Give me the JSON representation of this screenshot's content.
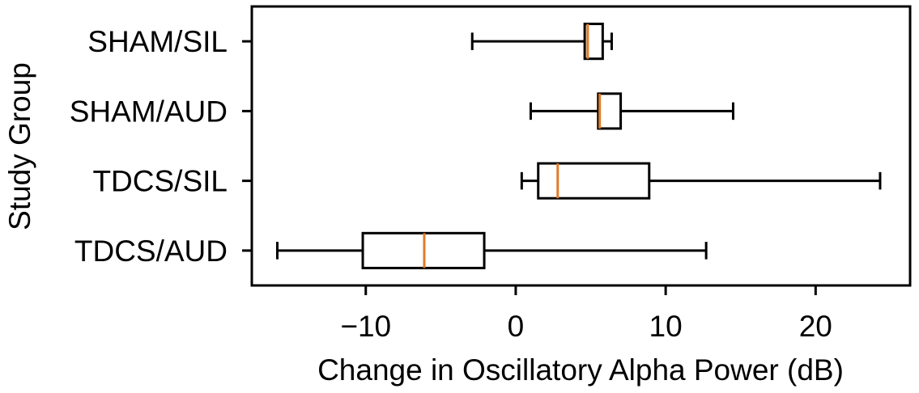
{
  "chart_data": {
    "type": "boxplot",
    "orientation": "horizontal",
    "xlabel": "Change in Oscillatory Alpha Power (dB)",
    "ylabel": "Study Group",
    "xlim": [
      -17.6,
      26.3
    ],
    "xticks": [
      -10,
      0,
      10,
      20
    ],
    "xtick_labels": [
      "−10",
      "0",
      "10",
      "20"
    ],
    "grid": false,
    "colors": {
      "box": "#000000",
      "median": "#e07b28"
    },
    "categories": [
      "SHAM/SIL",
      "SHAM/AUD",
      "TDCS/SIL",
      "TDCS/AUD"
    ],
    "boxes": [
      {
        "group": "SHAM/SIL",
        "whisker_low": -2.9,
        "q1": 4.6,
        "median": 4.8,
        "q3": 5.8,
        "whisker_high": 6.4
      },
      {
        "group": "SHAM/AUD",
        "whisker_low": 1.0,
        "q1": 5.5,
        "median": 5.6,
        "q3": 7.0,
        "whisker_high": 14.5
      },
      {
        "group": "TDCS/SIL",
        "whisker_low": 0.4,
        "q1": 1.5,
        "median": 2.8,
        "q3": 8.9,
        "whisker_high": 24.3
      },
      {
        "group": "TDCS/AUD",
        "whisker_low": -15.9,
        "q1": -10.2,
        "median": -6.1,
        "q3": -2.1,
        "whisker_high": 12.7
      }
    ]
  }
}
